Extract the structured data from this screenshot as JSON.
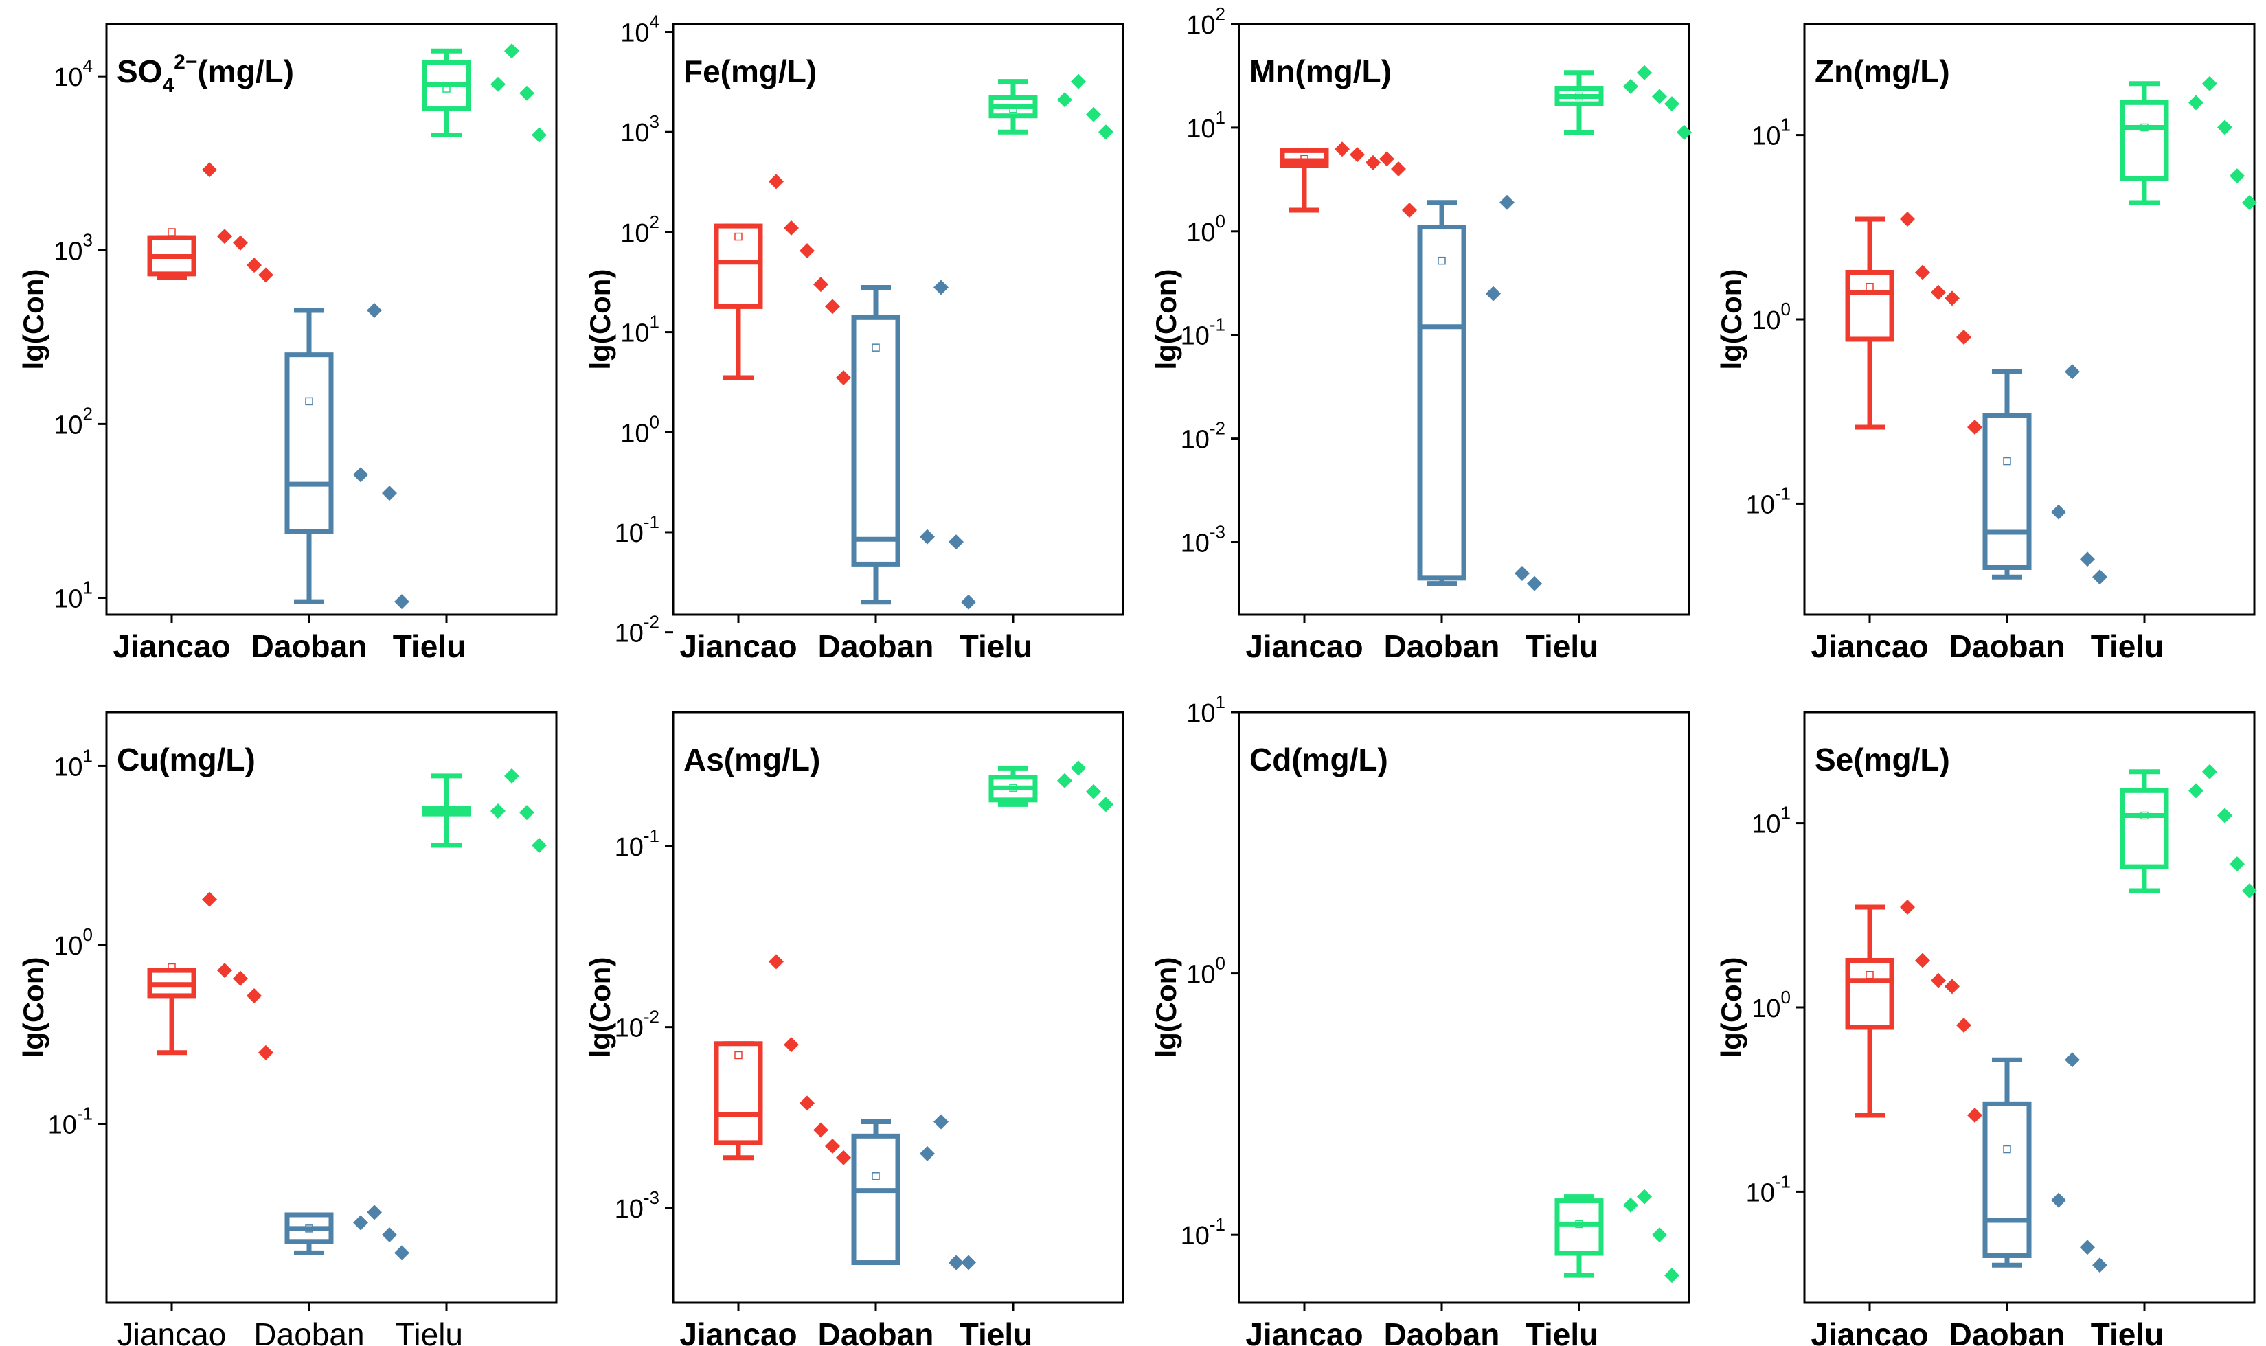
{
  "figure": {
    "colors": {
      "Jiancao": "#f03a2e",
      "Daoban": "#4e82a8",
      "Tielu": "#1ee37a"
    },
    "y_axis_label": "lg(Con)"
  },
  "chart_data": [
    {
      "type": "box",
      "title_parts": [
        "SO",
        "4",
        "2−",
        "(mg/L)"
      ],
      "categories": [
        "Jiancao",
        "Daoban",
        "Tielu"
      ],
      "xlabel": "",
      "ylabel": "lg(Con)",
      "yscale": "log",
      "ylim": [
        8,
        20000
      ],
      "ytick_labels": [
        {
          "base": "10",
          "exp": "1",
          "value": 10
        },
        {
          "base": "10",
          "exp": "2",
          "value": 100
        },
        {
          "base": "10",
          "exp": "3",
          "value": 1000
        },
        {
          "base": "10",
          "exp": "4",
          "value": 10000
        }
      ],
      "bold_category_labels": true,
      "series": [
        {
          "name": "Jiancao",
          "min": 700,
          "q1": 730,
          "median": 920,
          "q3": 1180,
          "max": 1180,
          "mean": 1270,
          "points": [
            2900,
            1200,
            1100,
            820,
            720
          ]
        },
        {
          "name": "Daoban",
          "min": 9.5,
          "q1": 24,
          "median": 45,
          "q3": 250,
          "max": 450,
          "mean": 135,
          "points": [
            450,
            51,
            40,
            9.5
          ]
        },
        {
          "name": "Tielu",
          "min": 4600,
          "q1": 6500,
          "median": 9000,
          "q3": 12000,
          "max": 14000,
          "mean": 8500,
          "points": [
            14000,
            9000,
            8000,
            4600
          ]
        }
      ]
    },
    {
      "type": "box",
      "title_parts": [
        "Fe(mg/L)"
      ],
      "categories": [
        "Jiancao",
        "Daoban",
        "Tielu"
      ],
      "xlabel": "",
      "ylabel": "lg(Con)",
      "yscale": "log",
      "ylim": [
        0.015,
        12000
      ],
      "ytick_labels": [
        {
          "base": "10",
          "exp": "-2",
          "value": 0.01
        },
        {
          "base": "10",
          "exp": "-1",
          "value": 0.1
        },
        {
          "base": "10",
          "exp": "0",
          "value": 1
        },
        {
          "base": "10",
          "exp": "1",
          "value": 10
        },
        {
          "base": "10",
          "exp": "2",
          "value": 100
        },
        {
          "base": "10",
          "exp": "3",
          "value": 1000
        },
        {
          "base": "10",
          "exp": "4",
          "value": 10000
        }
      ],
      "bold_category_labels": true,
      "series": [
        {
          "name": "Jiancao",
          "min": 3.5,
          "q1": 18,
          "median": 50,
          "q3": 115,
          "max": 115,
          "mean": 90,
          "points": [
            320,
            110,
            65,
            30,
            18,
            3.5
          ]
        },
        {
          "name": "Daoban",
          "min": 0.02,
          "q1": 0.048,
          "median": 0.085,
          "q3": 14,
          "max": 28,
          "mean": 7,
          "points": [
            28,
            0.09,
            0.08,
            0.02
          ]
        },
        {
          "name": "Tielu",
          "min": 1000,
          "q1": 1450,
          "median": 1800,
          "q3": 2200,
          "max": 3200,
          "mean": 1700,
          "points": [
            3200,
            2100,
            1500,
            1000
          ]
        }
      ]
    },
    {
      "type": "box",
      "title_parts": [
        "Mn(mg/L)"
      ],
      "categories": [
        "Jiancao",
        "Daoban",
        "Tielu"
      ],
      "xlabel": "",
      "ylabel": "lg(Con)",
      "yscale": "log",
      "ylim": [
        0.0002,
        100
      ],
      "ytick_labels": [
        {
          "base": "10",
          "exp": "-3",
          "value": 0.001
        },
        {
          "base": "10",
          "exp": "-2",
          "value": 0.01
        },
        {
          "base": "10",
          "exp": "-1",
          "value": 0.1
        },
        {
          "base": "10",
          "exp": "0",
          "value": 1
        },
        {
          "base": "10",
          "exp": "1",
          "value": 10
        },
        {
          "base": "10",
          "exp": "2",
          "value": 100
        }
      ],
      "bold_category_labels": true,
      "series": [
        {
          "name": "Jiancao",
          "min": 1.6,
          "q1": 4.3,
          "median": 4.8,
          "q3": 6.0,
          "max": 6.0,
          "mean": 5.0,
          "points": [
            6.2,
            5.5,
            4.6,
            5.0,
            4.0,
            1.6
          ]
        },
        {
          "name": "Daoban",
          "min": 0.0004,
          "q1": 0.00045,
          "median": 0.12,
          "q3": 1.1,
          "max": 1.9,
          "mean": 0.52,
          "points": [
            1.9,
            0.25,
            0.0005,
            0.0004
          ]
        },
        {
          "name": "Tielu",
          "min": 9,
          "q1": 17,
          "median": 20,
          "q3": 24,
          "max": 34,
          "mean": 20,
          "points": [
            34,
            25,
            20,
            17,
            9
          ]
        }
      ]
    },
    {
      "type": "box",
      "title_parts": [
        "Zn(mg/L)"
      ],
      "categories": [
        "Jiancao",
        "Daoban",
        "Tielu"
      ],
      "xlabel": "",
      "ylabel": "lg(Con)",
      "yscale": "log",
      "ylim": [
        0.025,
        40
      ],
      "ytick_labels": [
        {
          "base": "10",
          "exp": "-1",
          "value": 0.1
        },
        {
          "base": "10",
          "exp": "0",
          "value": 1
        },
        {
          "base": "10",
          "exp": "1",
          "value": 10
        }
      ],
      "bold_category_labels": true,
      "series": [
        {
          "name": "Jiancao",
          "min": 0.26,
          "q1": 0.78,
          "median": 1.4,
          "q3": 1.8,
          "max": 3.5,
          "mean": 1.5,
          "points": [
            3.5,
            1.8,
            1.4,
            1.3,
            0.8,
            0.26
          ]
        },
        {
          "name": "Daoban",
          "min": 0.04,
          "q1": 0.045,
          "median": 0.07,
          "q3": 0.3,
          "max": 0.52,
          "mean": 0.17,
          "points": [
            0.52,
            0.09,
            0.05,
            0.04
          ]
        },
        {
          "name": "Tielu",
          "min": 4.3,
          "q1": 5.8,
          "median": 11,
          "q3": 15,
          "max": 19,
          "mean": 11,
          "points": [
            19,
            15,
            11,
            6,
            4.3
          ]
        }
      ]
    },
    {
      "type": "box",
      "title_parts": [
        "Cu(mg/L)"
      ],
      "categories": [
        "Jiancao",
        "Daoban",
        "Tielu"
      ],
      "xlabel": "",
      "ylabel": "lg(Con)",
      "yscale": "log",
      "ylim": [
        0.01,
        20
      ],
      "ytick_labels": [
        {
          "base": "10",
          "exp": "-1",
          "value": 0.1
        },
        {
          "base": "10",
          "exp": "0",
          "value": 1
        },
        {
          "base": "10",
          "exp": "1",
          "value": 10
        }
      ],
      "bold_category_labels": false,
      "series": [
        {
          "name": "Jiancao",
          "min": 0.25,
          "q1": 0.52,
          "median": 0.6,
          "q3": 0.72,
          "max": 0.72,
          "mean": 0.75,
          "points": [
            1.8,
            0.72,
            0.65,
            0.52,
            0.25
          ]
        },
        {
          "name": "Daoban",
          "min": 0.019,
          "q1": 0.022,
          "median": 0.026,
          "q3": 0.031,
          "max": 0.031,
          "mean": 0.026,
          "points": [
            0.032,
            0.028,
            0.024,
            0.019
          ]
        },
        {
          "name": "Tielu",
          "min": 3.6,
          "q1": 5.4,
          "median": 5.6,
          "q3": 5.8,
          "max": 8.8,
          "mean": 5.6,
          "points": [
            8.8,
            5.6,
            5.5,
            3.6
          ]
        }
      ]
    },
    {
      "type": "box",
      "title_parts": [
        "As(mg/L)"
      ],
      "categories": [
        "Jiancao",
        "Daoban",
        "Tielu"
      ],
      "xlabel": "",
      "ylabel": "lg(Con)",
      "yscale": "log",
      "ylim": [
        0.0003,
        0.55
      ],
      "ytick_labels": [
        {
          "base": "10",
          "exp": "-3",
          "value": 0.001
        },
        {
          "base": "10",
          "exp": "-2",
          "value": 0.01
        },
        {
          "base": "10",
          "exp": "-1",
          "value": 0.1
        }
      ],
      "bold_category_labels": true,
      "series": [
        {
          "name": "Jiancao",
          "min": 0.0019,
          "q1": 0.0023,
          "median": 0.0033,
          "q3": 0.0081,
          "max": 0.0081,
          "mean": 0.007,
          "points": [
            0.023,
            0.008,
            0.0038,
            0.0027,
            0.0022,
            0.0019
          ]
        },
        {
          "name": "Daoban",
          "min": 0.0005,
          "q1": 0.0005,
          "median": 0.00125,
          "q3": 0.0025,
          "max": 0.003,
          "mean": 0.0015,
          "points": [
            0.003,
            0.002,
            0.0005,
            0.0005
          ]
        },
        {
          "name": "Tielu",
          "min": 0.17,
          "q1": 0.18,
          "median": 0.21,
          "q3": 0.24,
          "max": 0.27,
          "mean": 0.21,
          "points": [
            0.27,
            0.23,
            0.2,
            0.17
          ]
        }
      ]
    },
    {
      "type": "box",
      "title_parts": [
        "Cd(mg/L)"
      ],
      "categories": [
        "Jiancao",
        "Daoban",
        "Tielu"
      ],
      "xlabel": "",
      "ylabel": "lg(Con)",
      "yscale": "log",
      "ylim": [
        0.055,
        10
      ],
      "ytick_labels": [
        {
          "base": "10",
          "exp": "-1",
          "value": 0.1
        },
        {
          "base": "10",
          "exp": "0",
          "value": 1
        },
        {
          "base": "10",
          "exp": "1",
          "value": 10
        }
      ],
      "bold_category_labels": true,
      "series": [
        {
          "name": "Jiancao",
          "points": []
        },
        {
          "name": "Daoban",
          "points": []
        },
        {
          "name": "Tielu",
          "min": 0.07,
          "q1": 0.085,
          "median": 0.11,
          "q3": 0.135,
          "max": 0.14,
          "mean": 0.11,
          "points": [
            0.14,
            0.13,
            0.1,
            0.07
          ]
        }
      ]
    },
    {
      "type": "box",
      "title_parts": [
        "Se(mg/L)"
      ],
      "categories": [
        "Jiancao",
        "Daoban",
        "Tielu"
      ],
      "xlabel": "",
      "ylabel": "lg(Con)",
      "yscale": "log",
      "ylim": [
        0.025,
        40
      ],
      "ytick_labels": [
        {
          "base": "10",
          "exp": "-1",
          "value": 0.1
        },
        {
          "base": "10",
          "exp": "0",
          "value": 1
        },
        {
          "base": "10",
          "exp": "1",
          "value": 10
        }
      ],
      "bold_category_labels": true,
      "series": [
        {
          "name": "Jiancao",
          "min": 0.26,
          "q1": 0.78,
          "median": 1.4,
          "q3": 1.8,
          "max": 3.5,
          "mean": 1.5,
          "points": [
            3.5,
            1.8,
            1.4,
            1.3,
            0.8,
            0.26
          ]
        },
        {
          "name": "Daoban",
          "min": 0.04,
          "q1": 0.045,
          "median": 0.07,
          "q3": 0.3,
          "max": 0.52,
          "mean": 0.17,
          "points": [
            0.52,
            0.09,
            0.05,
            0.04
          ]
        },
        {
          "name": "Tielu",
          "min": 4.3,
          "q1": 5.8,
          "median": 11,
          "q3": 15,
          "max": 19,
          "mean": 11,
          "points": [
            19,
            15,
            11,
            6,
            4.3
          ]
        }
      ]
    }
  ]
}
